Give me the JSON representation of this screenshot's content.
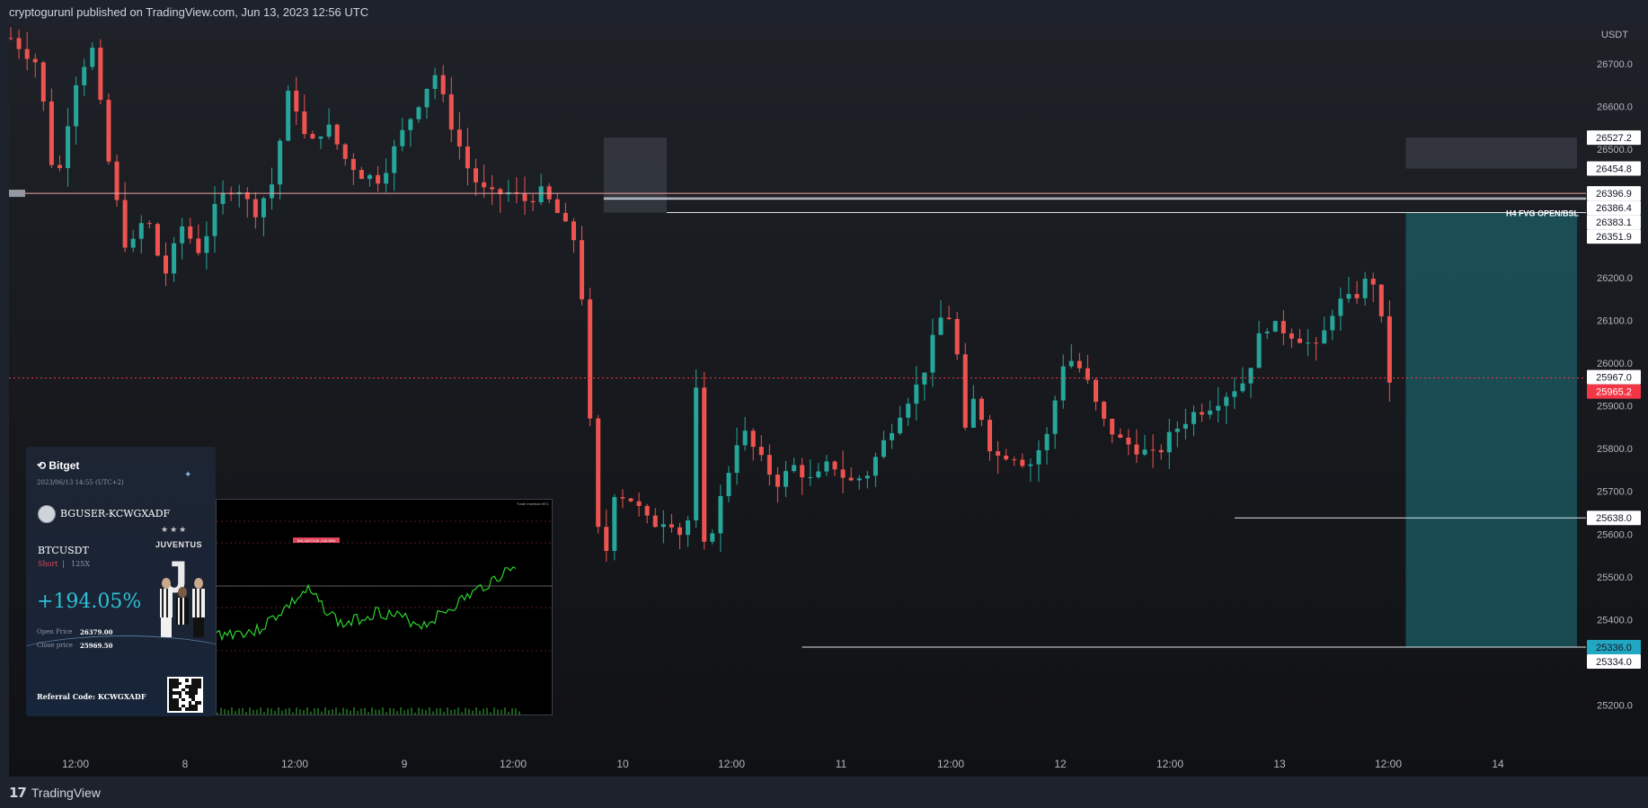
{
  "header": {
    "title": "cryptogurunl published on TradingView.com, Jun 13, 2023 12:56 UTC"
  },
  "footer": {
    "logo_text": "TradingView",
    "logo_icon": "tradingview-logo-icon"
  },
  "colors": {
    "up": "#26a69a",
    "down": "#ef5350",
    "background": "#131722",
    "price_label_red": "#f23645",
    "price_label_teal": "#22a7c2",
    "fvg_zone": "#3a3e46",
    "position_zone": "#1b5e66"
  },
  "chart_data": {
    "type": "candlestick",
    "symbol": "",
    "y_axis_unit": "USDT",
    "ylim": [
      25130,
      26790
    ],
    "y_ticks": [
      26700.0,
      26600.0,
      26500.0,
      26400.0,
      26300.0,
      26200.0,
      26100.0,
      26000.0,
      25900.0,
      25800.0,
      25700.0,
      25600.0,
      25500.0,
      25400.0,
      25300.0,
      25200.0
    ],
    "x_ticks": [
      "12:00",
      "8",
      "12:00",
      "9",
      "12:00",
      "10",
      "12:00",
      "11",
      "12:00",
      "12",
      "12:00",
      "13",
      "12:00",
      "14"
    ],
    "price_path": [
      [
        0,
        26760
      ],
      [
        3,
        26700
      ],
      [
        5,
        26400
      ],
      [
        7,
        26650
      ],
      [
        9,
        26740
      ],
      [
        11,
        26450
      ],
      [
        13,
        26250
      ],
      [
        15,
        26350
      ],
      [
        17,
        26200
      ],
      [
        19,
        26320
      ],
      [
        21,
        26260
      ],
      [
        23,
        26380
      ],
      [
        25,
        26420
      ],
      [
        27,
        26350
      ],
      [
        29,
        26420
      ],
      [
        31,
        26650
      ],
      [
        33,
        26500
      ],
      [
        35,
        26560
      ],
      [
        37,
        26480
      ],
      [
        39,
        26440
      ],
      [
        41,
        26430
      ],
      [
        43,
        26520
      ],
      [
        45,
        26600
      ],
      [
        47,
        26680
      ],
      [
        49,
        26550
      ],
      [
        51,
        26440
      ],
      [
        53,
        26390
      ],
      [
        55,
        26400
      ],
      [
        57,
        26380
      ],
      [
        59,
        26400
      ],
      [
        61,
        26340
      ],
      [
        62,
        26300
      ],
      [
        63,
        26280
      ],
      [
        64,
        25950
      ],
      [
        65,
        25620
      ],
      [
        66,
        25550
      ],
      [
        67,
        25700
      ],
      [
        69,
        25680
      ],
      [
        71,
        25620
      ],
      [
        73,
        25640
      ],
      [
        75,
        25580
      ],
      [
        76,
        25950
      ],
      [
        77,
        25550
      ],
      [
        79,
        25700
      ],
      [
        81,
        25850
      ],
      [
        83,
        25780
      ],
      [
        85,
        25720
      ],
      [
        87,
        25760
      ],
      [
        89,
        25720
      ],
      [
        91,
        25770
      ],
      [
        93,
        25720
      ],
      [
        95,
        25740
      ],
      [
        97,
        25820
      ],
      [
        99,
        25900
      ],
      [
        101,
        25960
      ],
      [
        103,
        26100
      ],
      [
        104,
        26120
      ],
      [
        105,
        26020
      ],
      [
        106,
        25820
      ],
      [
        107,
        25930
      ],
      [
        109,
        25780
      ],
      [
        111,
        25790
      ],
      [
        113,
        25760
      ],
      [
        115,
        25830
      ],
      [
        117,
        26020
      ],
      [
        119,
        25980
      ],
      [
        121,
        25870
      ],
      [
        123,
        25820
      ],
      [
        125,
        25800
      ],
      [
        127,
        25780
      ],
      [
        129,
        25840
      ],
      [
        131,
        25880
      ],
      [
        133,
        25900
      ],
      [
        135,
        25930
      ],
      [
        137,
        25960
      ],
      [
        139,
        26090
      ],
      [
        141,
        26080
      ],
      [
        143,
        26060
      ],
      [
        145,
        26030
      ],
      [
        147,
        26140
      ],
      [
        149,
        26150
      ],
      [
        151,
        26210
      ],
      [
        152,
        26110
      ],
      [
        153,
        25960
      ]
    ],
    "candle_count": 170,
    "horizontal_levels": [
      {
        "price": 26396.9,
        "label": "26396.9",
        "style": "solid"
      },
      {
        "price": 26386.4,
        "label": "26386.4",
        "style": "solid"
      },
      {
        "price": 26383.1,
        "label": "26383.1",
        "style": "solid"
      },
      {
        "price": 26351.9,
        "label": "26351.9",
        "style": "solid",
        "annotation": "H4 FVG OPEN/BSL"
      },
      {
        "price": 25965.2,
        "label": "25965.2",
        "style": "dotted",
        "current": true
      },
      {
        "price": 25967.0,
        "label": "25967.0",
        "style": "solid"
      },
      {
        "price": 25638.0,
        "label": "25638.0",
        "style": "solid"
      },
      {
        "price": 25336.0,
        "label": "25336.0",
        "style": "solid",
        "highlight": "teal"
      },
      {
        "price": 25334.0,
        "label": "25334.0",
        "style": "solid"
      }
    ],
    "zone_labels": [
      "26527.2",
      "26454.8"
    ],
    "zones": [
      {
        "name": "fvg-zone-left",
        "from_x": 66,
        "to_x": 73,
        "top": 26527.2,
        "bottom": 26351.9
      },
      {
        "name": "fvg-zone-right",
        "from_x": 155,
        "to_x": 174,
        "top": 26527.2,
        "bottom": 26454.8
      },
      {
        "name": "short-position-target",
        "from_x": 155,
        "to_x": 174,
        "top": 26351.9,
        "bottom": 25336.0
      }
    ]
  },
  "card": {
    "brand": "Bitget",
    "date": "2023/06/13 14:55 (UTC+2)",
    "user": "BGUSER-KCWGXADF",
    "pair": "BTCUSDT",
    "side": "Short",
    "separator": "|",
    "leverage": "125X",
    "roi": "+194.05%",
    "open_price_label": "Open Price",
    "open_price": "26379.00",
    "close_price_label": "Close price",
    "close_price": "25969.50",
    "referral": "Referral Code:  KCWGXADF",
    "team": "JUVENTUS",
    "stars": "★★★"
  },
  "mini_chart": {
    "label_red": "Sell 26379.00 -194.05%",
    "label_top": "Trade Interface BTC"
  }
}
